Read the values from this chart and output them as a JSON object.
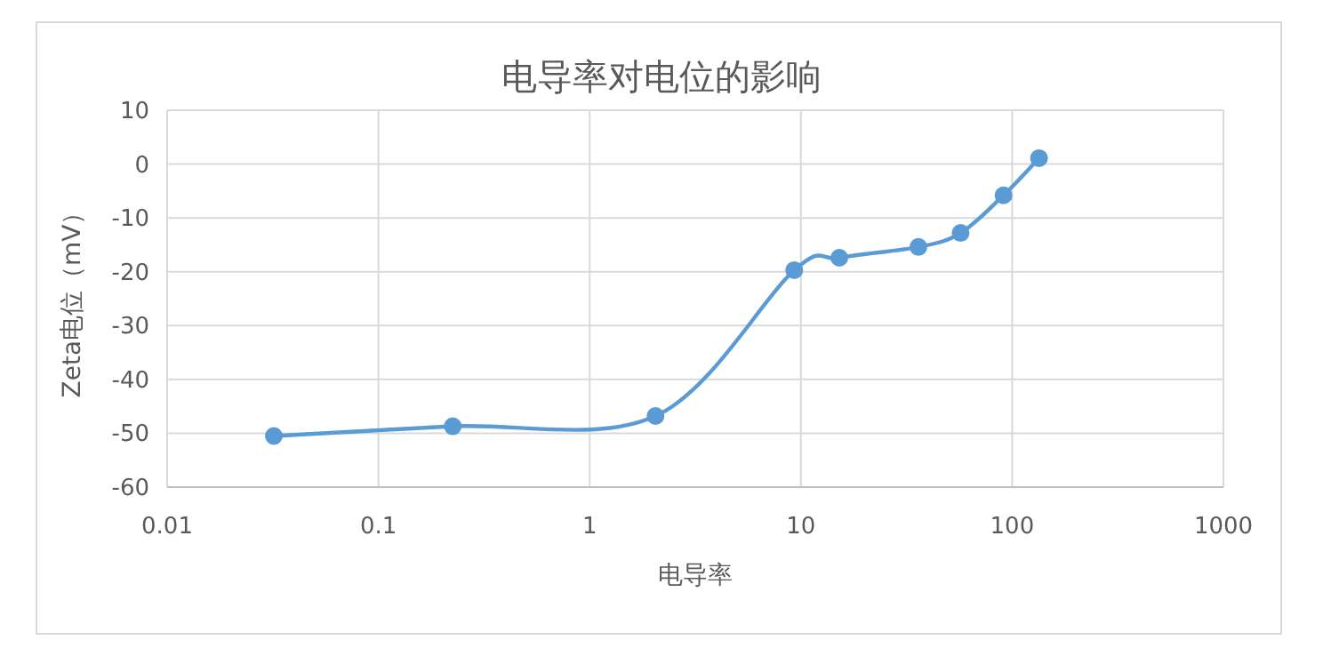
{
  "chart_data": {
    "type": "line",
    "title": "电导率对电位的影响",
    "xlabel": "电导率",
    "ylabel": "Zeta电位（mV）",
    "log": "x",
    "grid": true,
    "marker": "circle",
    "xlim": [
      0.01,
      1000
    ],
    "ylim": [
      -60,
      10
    ],
    "xticks": [
      0.01,
      0.1,
      1,
      10,
      100,
      1000
    ],
    "yticks": [
      -60,
      -50,
      -40,
      -30,
      -20,
      -10,
      0,
      10
    ],
    "series": [
      {
        "color": "#5b9bd5",
        "x": [
          0.032,
          0.225,
          2.05,
          9.3,
          15.2,
          36,
          57,
          91,
          134
        ],
        "values": [
          -50.5,
          -48.7,
          -46.8,
          -19.7,
          -17.4,
          -15.4,
          -12.8,
          -5.8,
          1.1
        ]
      }
    ]
  }
}
